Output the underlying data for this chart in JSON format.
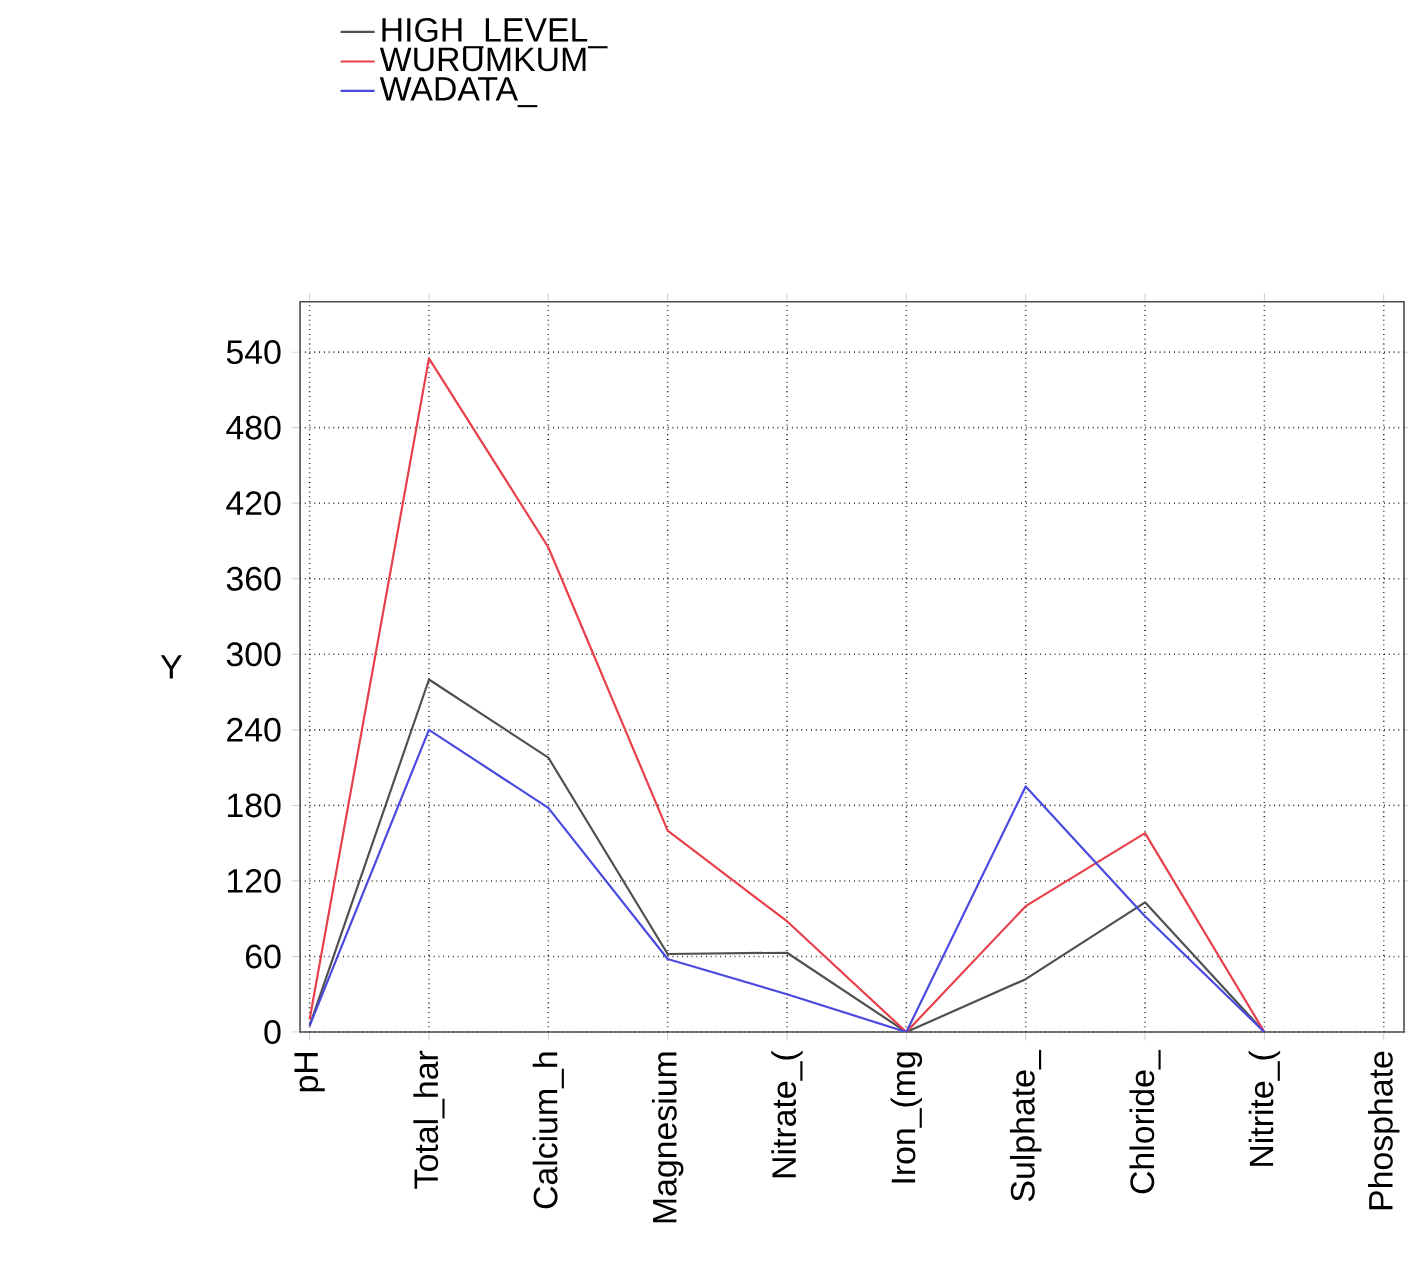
{
  "chart_data": {
    "type": "line",
    "ylabel": "Y",
    "categories": [
      "pH",
      "Total_har",
      "Calcium_h",
      "Magnesium",
      "Nitrate_(",
      "Iron_(mg",
      "Sulphate_",
      "Chloride_",
      "Nitrite_(",
      "Phosphate"
    ],
    "series": [
      {
        "name": "HIGH_LEVEL_",
        "color": "#505050",
        "values": [
          5,
          280,
          218,
          62,
          63,
          0,
          42,
          103,
          0,
          null
        ]
      },
      {
        "name": "WURUMKUM",
        "color": "#e8404a",
        "values": [
          10,
          535,
          385,
          160,
          88,
          0,
          100,
          158,
          0,
          null
        ]
      },
      {
        "name": "WADATA_",
        "color": "#4a4ae0",
        "values": [
          5,
          240,
          178,
          58,
          30,
          0,
          195,
          92,
          0,
          null
        ]
      }
    ],
    "ylim": [
      0,
      580
    ],
    "yticks": [
      0,
      60,
      120,
      180,
      240,
      300,
      360,
      420,
      480,
      540
    ],
    "grid": true,
    "legend": "top left",
    "marker": "none",
    "line_style": "solid"
  }
}
